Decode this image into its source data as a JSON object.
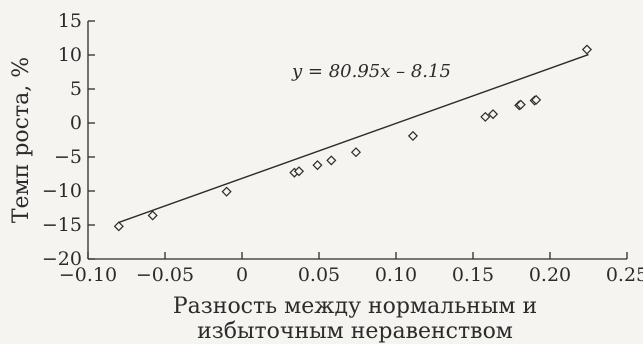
{
  "chart_data": {
    "type": "scatter",
    "title": "",
    "xlabel_lines": [
      "Разность между нормальным и",
      "избыточным неравенством"
    ],
    "ylabel": "Темп роста, %",
    "xlim": [
      -0.1,
      0.25
    ],
    "ylim": [
      -20,
      15
    ],
    "xticks": [
      -0.1,
      -0.05,
      0,
      0.05,
      0.1,
      0.15,
      0.2,
      0.25
    ],
    "xtick_labels": [
      "−0.10",
      "−0.05",
      "0",
      "0.05",
      "0.10",
      "0.15",
      "0.20",
      "0.25"
    ],
    "yticks": [
      -20,
      -15,
      -10,
      -5,
      0,
      5,
      10,
      15
    ],
    "ytick_labels": [
      "−20",
      "−15",
      "−10",
      "−5",
      "0",
      "5",
      "10",
      "15"
    ],
    "grid": false,
    "trendline": {
      "slope": 80.95,
      "intercept": -8.15,
      "x_range": [
        -0.08,
        0.225
      ]
    },
    "equation": "y = 80.95x – 8.15",
    "points": {
      "x": [
        -0.08,
        -0.058,
        -0.01,
        0.034,
        0.037,
        0.049,
        0.058,
        0.074,
        0.111,
        0.158,
        0.163,
        0.18,
        0.181,
        0.19,
        0.191,
        0.224
      ],
      "y": [
        -15.2,
        -13.6,
        -10.1,
        -7.3,
        -7.1,
        -6.2,
        -5.5,
        -4.3,
        -1.9,
        0.9,
        1.3,
        2.6,
        2.7,
        3.3,
        3.4,
        10.8
      ]
    }
  }
}
